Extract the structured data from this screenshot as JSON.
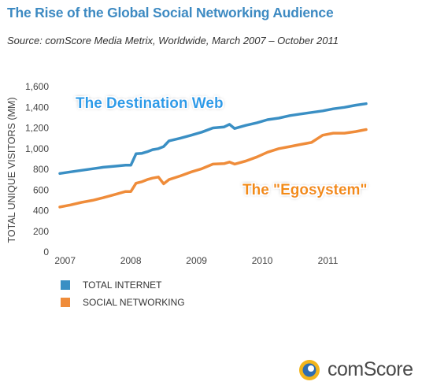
{
  "header": {
    "title": "The Rise of the Global Social Networking Audience",
    "subtitle": "Source: comScore Media Metrix, Worldwide, March 2007 – October 2011"
  },
  "colors": {
    "title": "#3d8ac2",
    "total_internet": "#3a8fc4",
    "social_networking": "#ef8c3a",
    "axis_text": "#444444",
    "annotation_blue": "#2c9be8",
    "annotation_orange": "#f28b16"
  },
  "chart_data": {
    "type": "line",
    "ylabel": "TOTAL UNIQUE VISITORS (MM)",
    "xlabel": "",
    "ylim": [
      0,
      1600
    ],
    "xlim": [
      2007.17,
      2011.83
    ],
    "yticks": [
      "0",
      "200",
      "400",
      "600",
      "800",
      "1,000",
      "1,200",
      "1,400",
      "1,600"
    ],
    "xticks": [
      "2007",
      "2008",
      "2009",
      "2010",
      "2011"
    ],
    "grid": false,
    "legend_position": "bottom-left",
    "series": [
      {
        "name": "TOTAL INTERNET",
        "x": [
          2007.17,
          2007.33,
          2007.5,
          2007.67,
          2007.83,
          2008.0,
          2008.17,
          2008.25,
          2008.33,
          2008.42,
          2008.5,
          2008.58,
          2008.67,
          2008.75,
          2008.83,
          2009.0,
          2009.17,
          2009.33,
          2009.5,
          2009.67,
          2009.75,
          2009.83,
          2010.0,
          2010.17,
          2010.33,
          2010.5,
          2010.67,
          2010.83,
          2011.0,
          2011.17,
          2011.33,
          2011.5,
          2011.67,
          2011.83
        ],
        "y": [
          760,
          775,
          790,
          805,
          820,
          830,
          840,
          840,
          950,
          955,
          970,
          990,
          1000,
          1020,
          1075,
          1100,
          1130,
          1160,
          1200,
          1210,
          1235,
          1195,
          1225,
          1250,
          1280,
          1295,
          1320,
          1335,
          1350,
          1365,
          1385,
          1400,
          1420,
          1435
        ]
      },
      {
        "name": "SOCIAL NETWORKING",
        "x": [
          2007.17,
          2007.33,
          2007.5,
          2007.67,
          2007.83,
          2008.0,
          2008.17,
          2008.25,
          2008.33,
          2008.42,
          2008.5,
          2008.58,
          2008.67,
          2008.75,
          2008.83,
          2009.0,
          2009.17,
          2009.33,
          2009.5,
          2009.67,
          2009.75,
          2009.83,
          2010.0,
          2010.17,
          2010.33,
          2010.5,
          2010.67,
          2010.83,
          2011.0,
          2011.17,
          2011.33,
          2011.5,
          2011.67,
          2011.83
        ],
        "y": [
          435,
          455,
          480,
          500,
          525,
          555,
          585,
          585,
          665,
          680,
          700,
          715,
          725,
          660,
          700,
          735,
          775,
          805,
          850,
          855,
          870,
          850,
          880,
          920,
          965,
          1000,
          1020,
          1040,
          1060,
          1130,
          1150,
          1150,
          1165,
          1185
        ]
      }
    ],
    "annotations": [
      {
        "text": "The Destination Web",
        "color_key": "annotation_blue"
      },
      {
        "text": "The \"Egosystem\"",
        "color_key": "annotation_orange"
      }
    ]
  },
  "logo": {
    "text": "comScore",
    "icon": "comscore-logo-icon"
  }
}
